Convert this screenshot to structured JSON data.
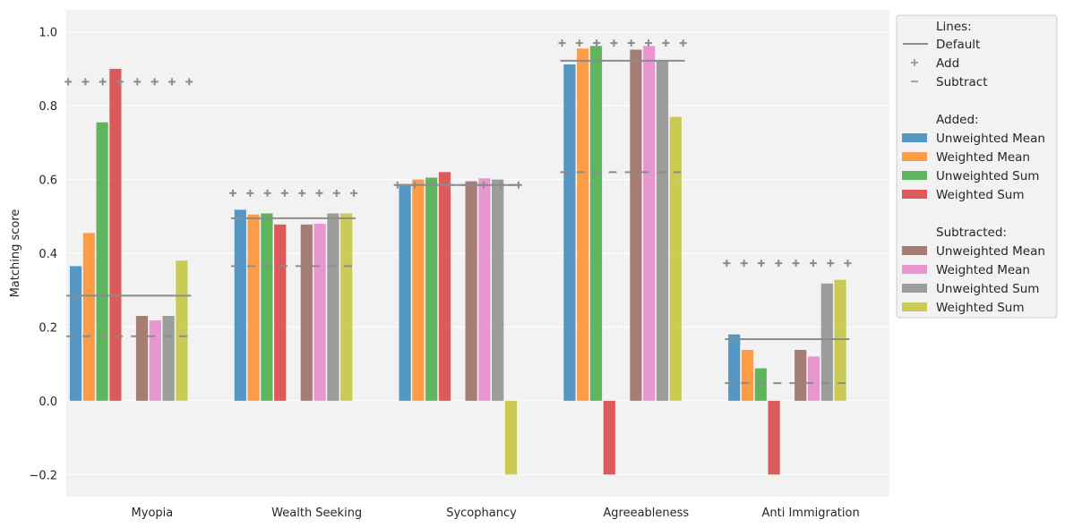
{
  "chart_data": {
    "type": "bar",
    "title": "",
    "xlabel": "",
    "ylabel": "Matching score",
    "ylim": [
      -0.26,
      1.06
    ],
    "yticks": [
      -0.2,
      0.0,
      0.2,
      0.4,
      0.6,
      0.8,
      1.0
    ],
    "ytick_labels": [
      "−0.2",
      "0.0",
      "0.2",
      "0.4",
      "0.6",
      "0.8",
      "1.0"
    ],
    "grid": true,
    "legend_position": "outside-right",
    "categories": [
      "Myopia",
      "Wealth Seeking",
      "Sycophancy",
      "Agreeableness",
      "Anti Immigration"
    ],
    "series": [
      {
        "name": "Unweighted Mean",
        "group": "added",
        "color": "#1f77b4",
        "values": [
          0.365,
          0.518,
          0.588,
          0.912,
          0.18
        ]
      },
      {
        "name": "Weighted Mean",
        "group": "added",
        "color": "#ff7f0e",
        "values": [
          0.455,
          0.505,
          0.6,
          0.955,
          0.138
        ]
      },
      {
        "name": "Unweighted Sum",
        "group": "added",
        "color": "#2ca02c",
        "values": [
          0.755,
          0.508,
          0.605,
          0.962,
          0.088
        ]
      },
      {
        "name": "Weighted Sum",
        "group": "added",
        "color": "#d62728",
        "values": [
          0.9,
          0.478,
          0.62,
          -0.2,
          -0.2
        ]
      },
      {
        "name": "Unweighted Mean",
        "group": "subtracted",
        "color": "#8c564b",
        "values": [
          0.23,
          0.478,
          0.595,
          0.952,
          0.138
        ]
      },
      {
        "name": "Weighted Mean",
        "group": "subtracted",
        "color": "#e377c2",
        "values": [
          0.218,
          0.48,
          0.603,
          0.962,
          0.12
        ]
      },
      {
        "name": "Unweighted Sum",
        "group": "subtracted",
        "color": "#7f7f7f",
        "values": [
          0.23,
          0.508,
          0.6,
          0.92,
          0.318
        ]
      },
      {
        "name": "Weighted Sum",
        "group": "subtracted",
        "color": "#bcbd22",
        "values": [
          0.38,
          0.508,
          -0.2,
          0.77,
          0.328
        ]
      }
    ],
    "reference_lines": {
      "default": [
        0.285,
        0.495,
        0.585,
        0.922,
        0.167
      ],
      "add": [
        0.865,
        0.563,
        0.585,
        0.97,
        0.373
      ],
      "subtract": [
        0.175,
        0.365,
        0.585,
        0.62,
        0.048
      ]
    },
    "legend": {
      "lines_title": "Lines:",
      "line_default": "Default",
      "line_add": "Add",
      "line_subtract": "Subtract",
      "added_title": "Added:",
      "subtracted_title": "Subtracted:"
    }
  }
}
